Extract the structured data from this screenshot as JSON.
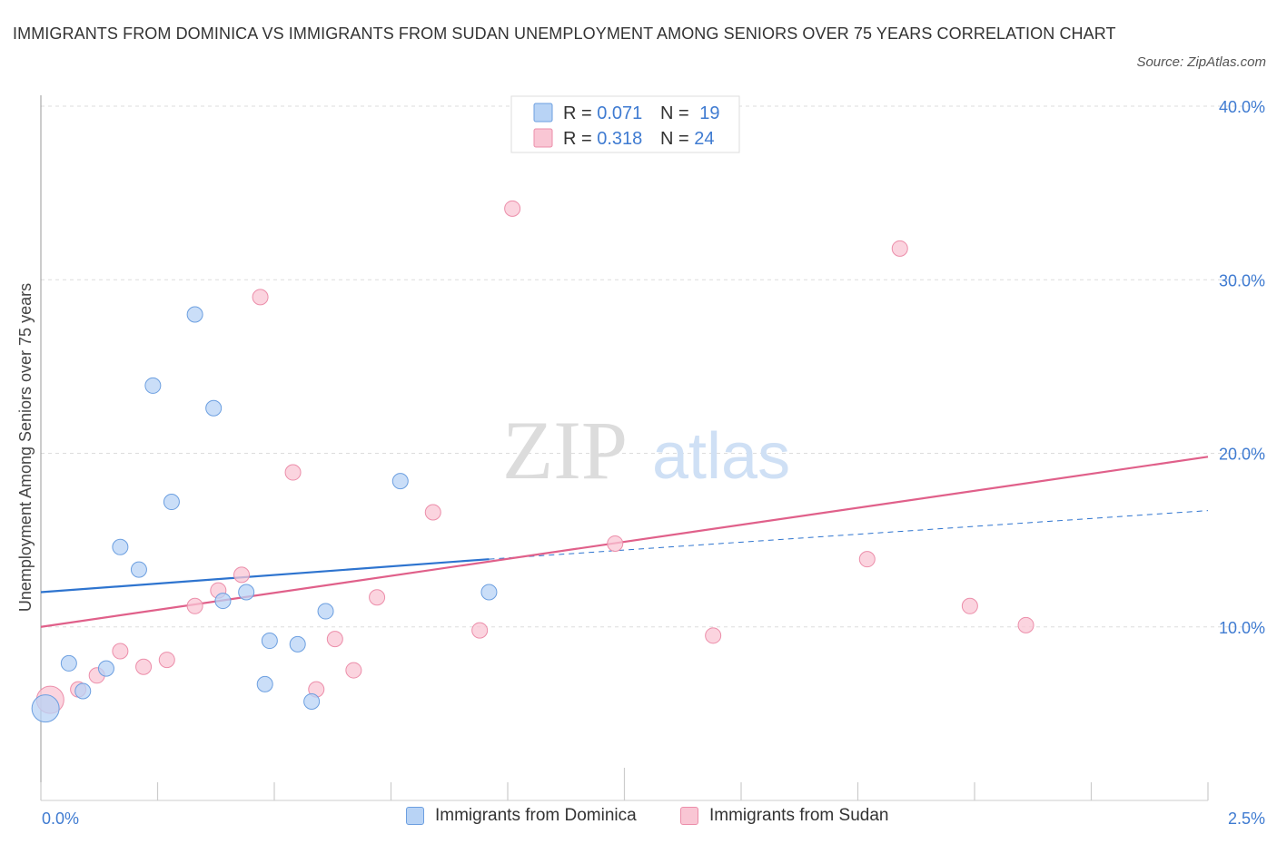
{
  "header": {
    "title": "IMMIGRANTS FROM DOMINICA VS IMMIGRANTS FROM SUDAN UNEMPLOYMENT AMONG SENIORS OVER 75 YEARS CORRELATION CHART",
    "source": "Source: ZipAtlas.com"
  },
  "watermark": {
    "zip": "ZIP",
    "atlas": "atlas"
  },
  "colors": {
    "dominica_fill": "#b8d3f5",
    "dominica_stroke": "#6c9fe0",
    "dominica_line": "#2e74cf",
    "sudan_fill": "#f9c6d4",
    "sudan_stroke": "#ec8eaa",
    "sudan_line": "#e0608a",
    "tick_label": "#3f7bd1"
  },
  "legend": {
    "rows": [
      {
        "r_label": "R = ",
        "r_value": "0.071",
        "n_label": "N = ",
        "n_value": "19"
      },
      {
        "r_label": "R = ",
        "r_value": "0.318",
        "n_label": "N = ",
        "n_value": "24"
      }
    ]
  },
  "chart_data": {
    "type": "scatter",
    "title": "IMMIGRANTS FROM DOMINICA VS IMMIGRANTS FROM SUDAN UNEMPLOYMENT AMONG SENIORS OVER 75 YEARS CORRELATION CHART",
    "xlabel": "",
    "ylabel": "Unemployment Among Seniors over 75 years",
    "xlim": [
      0,
      2.5
    ],
    "ylim": [
      0,
      40
    ],
    "x_tick_labels": [
      "0.0%",
      "2.5%"
    ],
    "y_ticks": [
      10,
      20,
      30,
      40
    ],
    "y_tick_labels": [
      "10.0%",
      "20.0%",
      "30.0%",
      "40.0%"
    ],
    "grid": true,
    "legend_position": "top-center",
    "series": [
      {
        "name": "Immigrants from Dominica",
        "points": [
          {
            "x": 0.01,
            "y": 5.3,
            "size": "large"
          },
          {
            "x": 0.06,
            "y": 7.9
          },
          {
            "x": 0.09,
            "y": 6.3
          },
          {
            "x": 0.14,
            "y": 7.6
          },
          {
            "x": 0.17,
            "y": 14.6
          },
          {
            "x": 0.21,
            "y": 13.3
          },
          {
            "x": 0.24,
            "y": 23.9
          },
          {
            "x": 0.28,
            "y": 17.2
          },
          {
            "x": 0.33,
            "y": 28.0
          },
          {
            "x": 0.37,
            "y": 22.6
          },
          {
            "x": 0.39,
            "y": 11.5
          },
          {
            "x": 0.44,
            "y": 12.0
          },
          {
            "x": 0.48,
            "y": 6.7
          },
          {
            "x": 0.49,
            "y": 9.2
          },
          {
            "x": 0.55,
            "y": 9.0
          },
          {
            "x": 0.58,
            "y": 5.7
          },
          {
            "x": 0.61,
            "y": 10.9
          },
          {
            "x": 0.77,
            "y": 18.4
          },
          {
            "x": 0.96,
            "y": 12.0
          }
        ],
        "trend": {
          "x0": 0.0,
          "y0": 12.0,
          "x1": 0.96,
          "y1": 13.9,
          "dashed_to_x": 2.5,
          "dashed_to_y": 16.7
        }
      },
      {
        "name": "Immigrants from Sudan",
        "points": [
          {
            "x": 0.02,
            "y": 5.8,
            "size": "large"
          },
          {
            "x": 0.08,
            "y": 6.4
          },
          {
            "x": 0.12,
            "y": 7.2
          },
          {
            "x": 0.17,
            "y": 8.6
          },
          {
            "x": 0.22,
            "y": 7.7
          },
          {
            "x": 0.27,
            "y": 8.1
          },
          {
            "x": 0.33,
            "y": 11.2
          },
          {
            "x": 0.38,
            "y": 12.1
          },
          {
            "x": 0.43,
            "y": 13.0
          },
          {
            "x": 0.47,
            "y": 29.0
          },
          {
            "x": 0.54,
            "y": 18.9
          },
          {
            "x": 0.59,
            "y": 6.4
          },
          {
            "x": 0.63,
            "y": 9.3
          },
          {
            "x": 0.67,
            "y": 7.5
          },
          {
            "x": 0.72,
            "y": 11.7
          },
          {
            "x": 0.84,
            "y": 16.6
          },
          {
            "x": 0.94,
            "y": 9.8
          },
          {
            "x": 1.01,
            "y": 34.1
          },
          {
            "x": 1.23,
            "y": 14.8
          },
          {
            "x": 1.44,
            "y": 9.5
          },
          {
            "x": 1.77,
            "y": 13.9
          },
          {
            "x": 1.84,
            "y": 31.8
          },
          {
            "x": 1.99,
            "y": 11.2
          },
          {
            "x": 2.11,
            "y": 10.1
          }
        ],
        "trend": {
          "x0": 0.0,
          "y0": 10.0,
          "x1": 2.5,
          "y1": 19.8
        }
      }
    ]
  },
  "bottom_legend": {
    "items": [
      "Immigrants from Dominica",
      "Immigrants from Sudan"
    ]
  }
}
